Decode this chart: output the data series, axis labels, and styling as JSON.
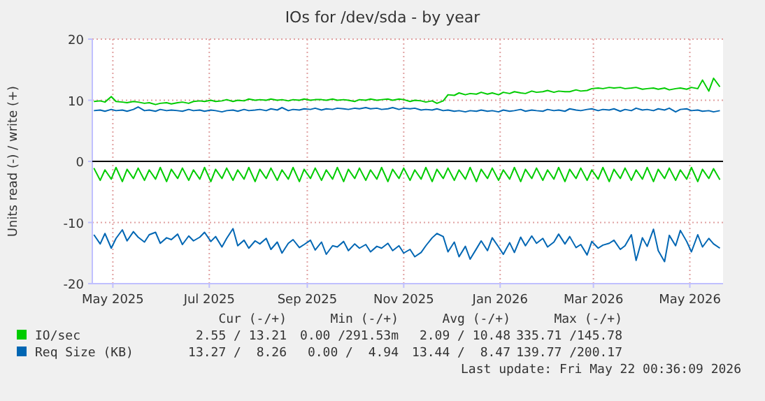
{
  "chart_data": {
    "type": "line",
    "title": "IOs for /dev/sda - by year",
    "ylabel": "Units read (-) / write (+)",
    "x": [
      "2025-04-19",
      "2025-04-23",
      "2025-04-26",
      "2025-04-30",
      "2025-05-03",
      "2025-05-07",
      "2025-05-10",
      "2025-05-14",
      "2025-05-17",
      "2025-05-21",
      "2025-05-24",
      "2025-05-28",
      "2025-05-31",
      "2025-06-04",
      "2025-06-07",
      "2025-06-11",
      "2025-06-14",
      "2025-06-18",
      "2025-06-21",
      "2025-06-25",
      "2025-06-28",
      "2025-07-02",
      "2025-07-05",
      "2025-07-09",
      "2025-07-12",
      "2025-07-16",
      "2025-07-19",
      "2025-07-23",
      "2025-07-26",
      "2025-07-30",
      "2025-08-02",
      "2025-08-06",
      "2025-08-09",
      "2025-08-13",
      "2025-08-16",
      "2025-08-20",
      "2025-08-23",
      "2025-08-27",
      "2025-08-30",
      "2025-09-03",
      "2025-09-06",
      "2025-09-10",
      "2025-09-13",
      "2025-09-17",
      "2025-09-20",
      "2025-09-24",
      "2025-09-27",
      "2025-10-01",
      "2025-10-04",
      "2025-10-08",
      "2025-10-11",
      "2025-10-15",
      "2025-10-18",
      "2025-10-22",
      "2025-10-25",
      "2025-10-29",
      "2025-11-01",
      "2025-11-05",
      "2025-11-08",
      "2025-11-12",
      "2025-11-15",
      "2025-11-19",
      "2025-11-22",
      "2025-11-26",
      "2025-11-29",
      "2025-12-03",
      "2025-12-06",
      "2025-12-10",
      "2025-12-13",
      "2025-12-17",
      "2025-12-20",
      "2025-12-24",
      "2025-12-27",
      "2025-12-31",
      "2026-01-03",
      "2026-01-07",
      "2026-01-10",
      "2026-01-14",
      "2026-01-17",
      "2026-01-21",
      "2026-01-24",
      "2026-01-28",
      "2026-01-31",
      "2026-02-04",
      "2026-02-07",
      "2026-02-11",
      "2026-02-14",
      "2026-02-18",
      "2026-02-21",
      "2026-02-25",
      "2026-02-28",
      "2026-03-04",
      "2026-03-07",
      "2026-03-11",
      "2026-03-14",
      "2026-03-18",
      "2026-03-21",
      "2026-03-25",
      "2026-03-28",
      "2026-04-01",
      "2026-04-04",
      "2026-04-08",
      "2026-04-11",
      "2026-04-15",
      "2026-04-18",
      "2026-04-22",
      "2026-04-25",
      "2026-04-29",
      "2026-05-02",
      "2026-05-06",
      "2026-05-09",
      "2026-05-13",
      "2026-05-16",
      "2026-05-20"
    ],
    "series": [
      {
        "name": "IO/sec",
        "color": "#00cc00",
        "values": [
          9.8,
          9.9,
          9.7,
          10.6,
          9.8,
          9.7,
          9.6,
          9.8,
          9.7,
          9.5,
          9.6,
          9.3,
          9.5,
          9.6,
          9.4,
          9.6,
          9.7,
          9.5,
          9.8,
          9.9,
          9.8,
          10,
          9.8,
          9.9,
          10.1,
          9.8,
          10,
          9.9,
          10.2,
          10,
          10.1,
          10,
          10.2,
          10,
          10.1,
          9.9,
          10.1,
          10,
          10.2,
          10,
          10.1,
          10.1,
          10,
          10.2,
          10,
          10.1,
          10,
          9.8,
          10.1,
          10,
          10.2,
          10,
          10.1,
          10.2,
          10,
          10.2,
          10.1,
          9.8,
          10,
          9.9,
          9.7,
          9.9,
          9.5,
          9.9,
          10.9,
          10.8,
          11.2,
          10.9,
          11.1,
          11,
          11.3,
          11,
          11.2,
          10.9,
          11.3,
          11.1,
          11.4,
          11.2,
          11.1,
          11.5,
          11.3,
          11.4,
          11.6,
          11.3,
          11.5,
          11.4,
          11.4,
          11.7,
          11.5,
          11.6,
          11.9,
          12,
          11.9,
          12.1,
          12,
          12.1,
          11.9,
          12,
          12.1,
          11.8,
          11.9,
          12,
          11.8,
          12,
          11.7,
          11.9,
          12,
          11.8,
          12.1,
          11.9,
          13.3,
          11.5,
          13.6,
          12.2
        ]
      },
      {
        "color": "#00cc00",
        "values": [
          -1.1,
          -3.1,
          -1.4,
          -2.9,
          -1.0,
          -3.3,
          -1.3,
          -2.8,
          -1.1,
          -3.1,
          -1.4,
          -2.9,
          -1.0,
          -3.3,
          -1.3,
          -2.8,
          -1.1,
          -3.1,
          -1.4,
          -2.9,
          -1.0,
          -3.3,
          -1.3,
          -2.8,
          -1.1,
          -3.1,
          -1.4,
          -2.9,
          -1.0,
          -3.3,
          -1.3,
          -2.8,
          -1.1,
          -3.1,
          -1.4,
          -2.9,
          -1.0,
          -3.3,
          -1.3,
          -2.8,
          -1.1,
          -3.1,
          -1.4,
          -2.9,
          -1.0,
          -3.3,
          -1.3,
          -2.8,
          -1.1,
          -3.1,
          -1.4,
          -2.9,
          -1.0,
          -3.3,
          -1.3,
          -2.8,
          -1.1,
          -3.1,
          -1.4,
          -2.9,
          -1.0,
          -3.3,
          -1.3,
          -2.8,
          -1.1,
          -3.1,
          -1.4,
          -2.9,
          -1.0,
          -3.3,
          -1.3,
          -2.8,
          -1.1,
          -3.1,
          -1.4,
          -2.9,
          -1.0,
          -3.3,
          -1.3,
          -2.8,
          -1.1,
          -3.1,
          -1.4,
          -2.9,
          -1.0,
          -3.3,
          -1.3,
          -2.8,
          -1.1,
          -3.1,
          -1.4,
          -2.9,
          -1.0,
          -3.3,
          -1.3,
          -2.8,
          -1.1,
          -3.1,
          -1.4,
          -2.9,
          -1.0,
          -3.3,
          -1.3,
          -2.8,
          -1.1,
          -3.1,
          -1.4,
          -2.9,
          -1.0,
          -3.3,
          -1.3,
          -2.8,
          -1.2,
          -3.0
        ]
      },
      {
        "name": "Req Size (KB)",
        "color": "#0066b3",
        "values": [
          8.3,
          8.4,
          8.2,
          8.5,
          8.3,
          8.4,
          8.2,
          8.5,
          8.9,
          8.3,
          8.4,
          8.2,
          8.5,
          8.3,
          8.4,
          8.3,
          8.2,
          8.5,
          8.3,
          8.4,
          8.2,
          8.4,
          8.3,
          8.1,
          8.3,
          8.4,
          8.2,
          8.5,
          8.3,
          8.4,
          8.5,
          8.3,
          8.6,
          8.4,
          8.8,
          8.3,
          8.5,
          8.4,
          8.6,
          8.5,
          8.7,
          8.4,
          8.6,
          8.5,
          8.7,
          8.6,
          8.5,
          8.7,
          8.6,
          8.8,
          8.6,
          8.7,
          8.5,
          8.6,
          8.8,
          8.5,
          8.7,
          8.6,
          8.7,
          8.4,
          8.5,
          8.4,
          8.6,
          8.3,
          8.4,
          8.2,
          8.3,
          8.1,
          8.3,
          8.2,
          8.4,
          8.2,
          8.3,
          8.1,
          8.4,
          8.2,
          8.3,
          8.5,
          8.2,
          8.4,
          8.3,
          8.2,
          8.5,
          8.3,
          8.4,
          8.2,
          8.6,
          8.4,
          8.3,
          8.5,
          8.6,
          8.3,
          8.5,
          8.4,
          8.6,
          8.2,
          8.5,
          8.3,
          8.7,
          8.4,
          8.5,
          8.3,
          8.6,
          8.4,
          8.7,
          8.1,
          8.5,
          8.6,
          8.3,
          8.4,
          8.2,
          8.3,
          8.1,
          8.3
        ]
      },
      {
        "color": "#0066b3",
        "values": [
          -12.0,
          -13.5,
          -11.8,
          -14.2,
          -12.6,
          -11.2,
          -13.0,
          -11.5,
          -12.4,
          -13.2,
          -12.0,
          -11.6,
          -13.4,
          -12.5,
          -12.8,
          -11.9,
          -13.6,
          -12.2,
          -13.0,
          -12.4,
          -11.6,
          -13.1,
          -12.3,
          -14.0,
          -12.6,
          -11.0,
          -13.8,
          -12.9,
          -14.2,
          -13.0,
          -13.5,
          -12.6,
          -14.4,
          -13.2,
          -15.0,
          -13.4,
          -12.8,
          -14.1,
          -13.6,
          -12.9,
          -14.5,
          -13.2,
          -15.2,
          -13.8,
          -14.0,
          -13.1,
          -14.6,
          -13.5,
          -14.2,
          -13.6,
          -14.8,
          -13.9,
          -14.2,
          -13.4,
          -14.6,
          -13.8,
          -15.0,
          -14.4,
          -15.6,
          -14.9,
          -13.8,
          -12.5,
          -11.8,
          -12.3,
          -14.8,
          -13.2,
          -15.6,
          -13.9,
          -16.0,
          -14.3,
          -13.0,
          -14.6,
          -12.5,
          -14.0,
          -15.2,
          -13.3,
          -14.9,
          -12.4,
          -13.8,
          -12.2,
          -13.4,
          -12.6,
          -14.0,
          -13.2,
          -11.9,
          -13.5,
          -12.3,
          -14.1,
          -13.6,
          -15.3,
          -13.1,
          -14.2,
          -13.7,
          -13.4,
          -12.9,
          -14.4,
          -13.8,
          -12.0,
          -16.2,
          -12.5,
          -13.9,
          -11.1,
          -14.6,
          -16.4,
          -12.1,
          -13.8,
          -11.3,
          -13.1,
          -14.8,
          -12.0,
          -14.0,
          -12.6,
          -13.5,
          -14.2
        ]
      }
    ],
    "xlim": [
      "2025-04-18",
      "2026-05-22"
    ],
    "xticks": [
      {
        "value": "2025-05-01",
        "label": "May 2025"
      },
      {
        "value": "2025-07-01",
        "label": "Jul 2025"
      },
      {
        "value": "2025-09-01",
        "label": "Sep 2025"
      },
      {
        "value": "2025-11-01",
        "label": "Nov 2025"
      },
      {
        "value": "2026-01-01",
        "label": "Jan 2026"
      },
      {
        "value": "2026-03-01",
        "label": "Mar 2026"
      },
      {
        "value": "2026-05-01",
        "label": "May 2026"
      }
    ],
    "ylim": [
      -20,
      20
    ],
    "yticks": [
      -20,
      -10,
      0,
      10,
      20
    ],
    "ref_lines": [
      {
        "axis": "y",
        "value": 0,
        "color": "#000000"
      }
    ],
    "grid": true,
    "legend": "bottom",
    "annotations": [
      "Cur (-/+)",
      "Min (-/+)",
      "Avg (-/+)",
      "Max (-/+)",
      "2.55 / 13.21",
      "0.00 /291.53m",
      "2.09 / 10.48",
      "335.71 /145.78",
      "13.27 /  8.26",
      "0.00 /  4.94",
      "13.44 /  8.47",
      "139.77 /200.17",
      "Last update: Fri May 22 00:36:09 2026"
    ]
  }
}
